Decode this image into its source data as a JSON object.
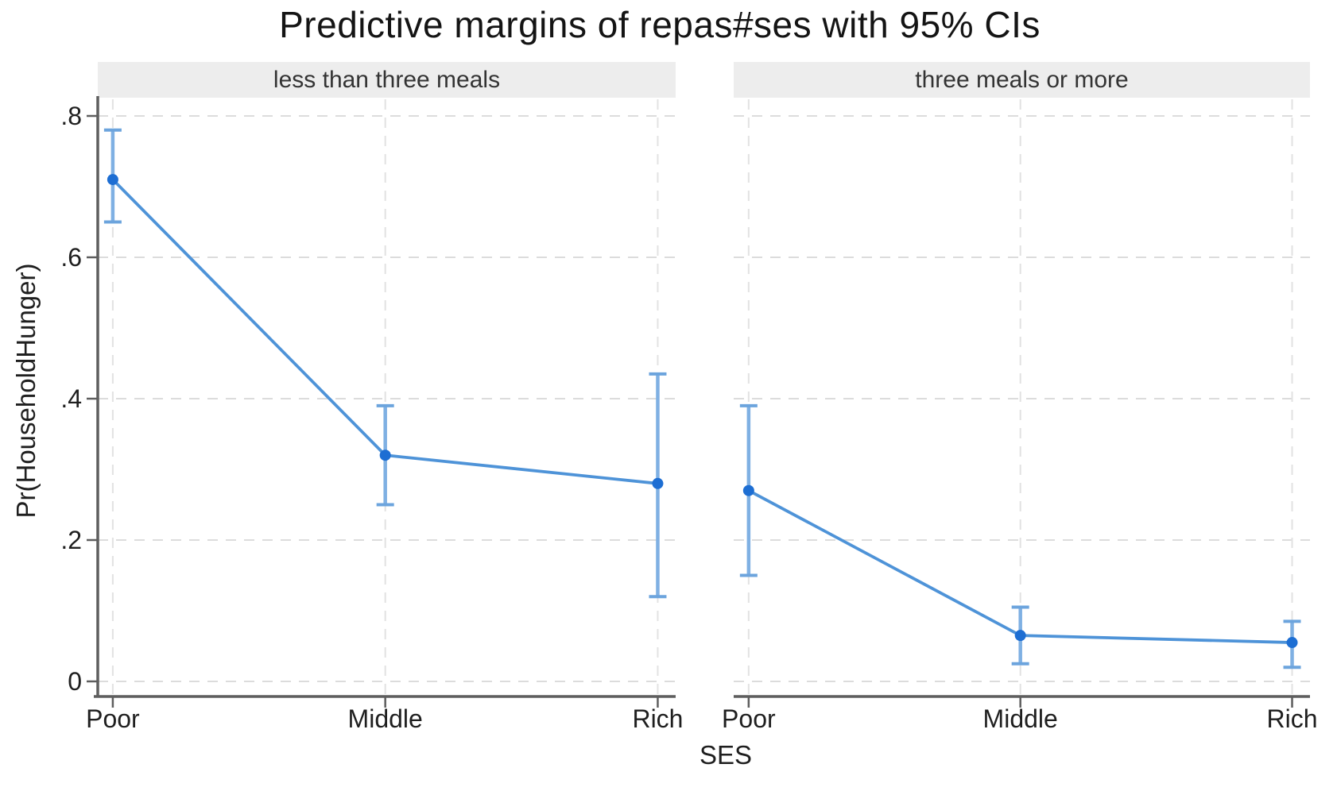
{
  "chart_data": {
    "type": "line",
    "title": "Predictive margins of repas#ses with 95% CIs",
    "ylabel": "Pr(HouseholdHunger)",
    "xlabel": "SES",
    "categories": [
      "Poor",
      "Middle",
      "Rich"
    ],
    "yticks": [
      0,
      0.2,
      0.4,
      0.6,
      0.8
    ],
    "ytick_labels": [
      "0",
      ".2",
      ".4",
      ".6",
      ".8"
    ],
    "ylim": [
      -0.02,
      0.82
    ],
    "grid": "dashed",
    "legend_position": "none",
    "panels": [
      {
        "label": "less than three meals",
        "series_name": "Predictive margin",
        "points": [
          {
            "category": "Poor",
            "value": 0.71,
            "ci_low": 0.65,
            "ci_high": 0.78
          },
          {
            "category": "Middle",
            "value": 0.32,
            "ci_low": 0.25,
            "ci_high": 0.39
          },
          {
            "category": "Rich",
            "value": 0.28,
            "ci_low": 0.12,
            "ci_high": 0.435
          }
        ]
      },
      {
        "label": "three meals or more",
        "series_name": "Predictive margin",
        "points": [
          {
            "category": "Poor",
            "value": 0.27,
            "ci_low": 0.15,
            "ci_high": 0.39
          },
          {
            "category": "Middle",
            "value": 0.065,
            "ci_low": 0.025,
            "ci_high": 0.105
          },
          {
            "category": "Rich",
            "value": 0.055,
            "ci_low": 0.02,
            "ci_high": 0.085
          }
        ]
      }
    ],
    "colors": {
      "marker": "#1d6ed3",
      "line": "#4e93d8",
      "errorbar_spike": "#7fb0e3",
      "errorbar_cap": "#6ca4dd",
      "grid": "#dcdcdc",
      "axis": "#5e5e5e",
      "band_bg": "#ededed",
      "band_text": "#333333",
      "tick_text": "#1f1f1f"
    }
  }
}
